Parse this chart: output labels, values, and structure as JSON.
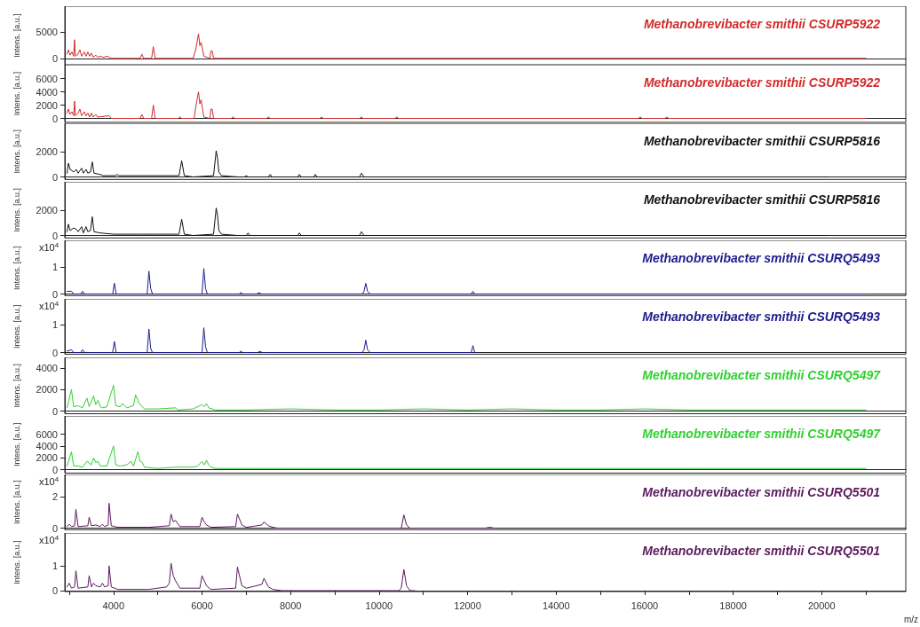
{
  "chart_data": [
    {
      "type": "line",
      "ylabel": "Intens. [a.u.]",
      "xlim": [
        2900,
        21900
      ],
      "ylim": [
        -1200,
        9800
      ],
      "yticks": [
        0,
        5000
      ],
      "tick_labels": "y",
      "legend": "top right",
      "series": [
        {
          "name": "Methanobrevibacter smithii CSURP5922",
          "color": "#d42a2a",
          "x": [
            2950,
            2980,
            3020,
            3060,
            3100,
            3120,
            3140,
            3200,
            3240,
            3280,
            3340,
            3380,
            3420,
            3460,
            3500,
            3540,
            3600,
            3640,
            3700,
            3760,
            3880,
            3920,
            4600,
            4640,
            4680,
            4860,
            4900,
            4940,
            5800,
            5860,
            5920,
            5950,
            5980,
            6040,
            6180,
            6200,
            6230,
            6260,
            21000
          ],
          "values": [
            800,
            1600,
            600,
            1200,
            400,
            3500,
            400,
            800,
            1600,
            400,
            1200,
            400,
            1200,
            400,
            1000,
            200,
            600,
            200,
            400,
            200,
            400,
            0,
            0,
            800,
            0,
            0,
            2200,
            0,
            0,
            1800,
            4600,
            2400,
            3000,
            400,
            0,
            1400,
            1400,
            0,
            0
          ]
        }
      ]
    },
    {
      "type": "line",
      "ylabel": "Intens. [a.u.]",
      "xlim": [
        2900,
        21900
      ],
      "ylim": [
        -600,
        8100
      ],
      "yticks": [
        0,
        2000,
        4000,
        6000
      ],
      "tick_labels": "y",
      "legend": "top right",
      "series": [
        {
          "name": "Methanobrevibacter smithii CSURP5922",
          "color": "#d42a2a",
          "x": [
            2950,
            2980,
            3020,
            3060,
            3100,
            3120,
            3140,
            3200,
            3240,
            3280,
            3340,
            3380,
            3420,
            3460,
            3500,
            3540,
            3600,
            3640,
            3900,
            3950,
            4600,
            4640,
            4680,
            4860,
            4900,
            4940,
            5460,
            5500,
            5540,
            5820,
            5860,
            5920,
            5950,
            5980,
            6040,
            6180,
            6200,
            6230,
            6260,
            6660,
            6700,
            6740,
            7460,
            7500,
            7540,
            8660,
            8700,
            8740,
            9560,
            9600,
            9640,
            10360,
            10400,
            10440,
            15860,
            15900,
            15940,
            16460,
            16500,
            16540,
            21000
          ],
          "values": [
            800,
            1400,
            600,
            1000,
            400,
            2600,
            400,
            800,
            1400,
            400,
            1000,
            400,
            800,
            200,
            800,
            200,
            600,
            200,
            400,
            0,
            0,
            600,
            0,
            0,
            2000,
            0,
            0,
            200,
            0,
            0,
            1800,
            4000,
            2200,
            2800,
            200,
            0,
            1400,
            1400,
            0,
            0,
            200,
            0,
            0,
            200,
            0,
            0,
            200,
            0,
            0,
            200,
            0,
            0,
            200,
            0,
            0,
            200,
            0,
            0,
            200,
            0,
            0
          ]
        }
      ]
    },
    {
      "type": "line",
      "ylabel": "Intens. [a.u.]",
      "xlim": [
        2900,
        21900
      ],
      "ylim": [
        -200,
        4300
      ],
      "yticks": [
        0,
        2000
      ],
      "tick_labels": "y",
      "legend": "top right",
      "series": [
        {
          "name": "Methanobrevibacter smithii CSURP5816",
          "color": "#111111",
          "x": [
            2950,
            2980,
            3020,
            3100,
            3160,
            3200,
            3280,
            3320,
            3380,
            3420,
            3480,
            3520,
            3560,
            3700,
            3760,
            4040,
            4080,
            4120,
            5000,
            5480,
            5540,
            5600,
            5800,
            6260,
            6320,
            6350,
            6380,
            6440,
            6800,
            6960,
            7000,
            7040,
            7500,
            7540,
            7580,
            8160,
            8200,
            8240,
            8520,
            8560,
            8600,
            9560,
            9600,
            9660,
            20100
          ],
          "values": [
            300,
            1100,
            600,
            400,
            600,
            300,
            700,
            300,
            600,
            300,
            400,
            1200,
            300,
            200,
            100,
            100,
            200,
            100,
            100,
            100,
            1300,
            100,
            0,
            100,
            2100,
            1500,
            400,
            100,
            0,
            0,
            100,
            0,
            0,
            200,
            0,
            0,
            200,
            0,
            0,
            200,
            0,
            0,
            300,
            0,
            0
          ]
        }
      ]
    },
    {
      "type": "line",
      "ylabel": "Intens. [a.u.]",
      "xlim": [
        2900,
        21900
      ],
      "ylim": [
        -200,
        4300
      ],
      "yticks": [
        0,
        2000
      ],
      "tick_labels": "y",
      "legend": "top right",
      "series": [
        {
          "name": "Methanobrevibacter smithii CSURP5816",
          "color": "#111111",
          "x": [
            2950,
            2980,
            3020,
            3100,
            3160,
            3200,
            3280,
            3320,
            3380,
            3420,
            3480,
            3520,
            3560,
            3700,
            4000,
            4600,
            5000,
            5480,
            5540,
            5600,
            5800,
            6260,
            6320,
            6350,
            6380,
            6440,
            6800,
            7000,
            7040,
            7080,
            8160,
            8200,
            8240,
            9560,
            9600,
            9660,
            20100
          ],
          "values": [
            300,
            900,
            400,
            600,
            500,
            300,
            700,
            200,
            700,
            300,
            400,
            1500,
            300,
            200,
            100,
            100,
            100,
            100,
            1300,
            100,
            0,
            100,
            2200,
            1600,
            400,
            100,
            0,
            0,
            200,
            0,
            0,
            200,
            0,
            0,
            300,
            0,
            0
          ]
        }
      ]
    },
    {
      "type": "line",
      "ylabel": "Intens. [a.u.]",
      "annotations": [
        "x10$^{4}$"
      ],
      "xlim": [
        2900,
        21900
      ],
      "ylim": [
        -0.06,
        2.0
      ],
      "yticks": [
        0,
        1
      ],
      "tick_labels": "y",
      "legend": "top right",
      "series": [
        {
          "name": "Methanobrevibacter smithii CSURQ5493",
          "color": "#1c1c8c",
          "x": [
            2950,
            3050,
            3100,
            3260,
            3300,
            3350,
            3980,
            4020,
            4060,
            4760,
            4800,
            4840,
            4880,
            6000,
            6040,
            6080,
            6120,
            6840,
            6880,
            6920,
            7240,
            7280,
            7340,
            9620,
            9660,
            9700,
            9740,
            9800,
            12080,
            12120,
            12160,
            21000
          ],
          "values": [
            0.1,
            0.1,
            0,
            0,
            0.1,
            0,
            0,
            0.4,
            0,
            0,
            0.85,
            0.2,
            0,
            0,
            0.95,
            0.2,
            0,
            0,
            0.05,
            0,
            0,
            0.05,
            0,
            0,
            0.1,
            0.4,
            0.1,
            0,
            0,
            0.1,
            0,
            0
          ]
        }
      ]
    },
    {
      "type": "line",
      "ylabel": "Intens. [a.u.]",
      "annotations": [
        "x10$^{4}$"
      ],
      "xlim": [
        2900,
        21900
      ],
      "ylim": [
        -0.06,
        1.95
      ],
      "yticks": [
        0,
        1
      ],
      "tick_labels": "y",
      "legend": "top right",
      "series": [
        {
          "name": "Methanobrevibacter smithii CSURQ5493",
          "color": "#1c1c8c",
          "x": [
            2950,
            3050,
            3100,
            3260,
            3300,
            3350,
            3980,
            4020,
            4060,
            4760,
            4800,
            4840,
            4880,
            6000,
            6040,
            6080,
            6120,
            6840,
            6880,
            6920,
            7260,
            7300,
            7360,
            9620,
            9660,
            9700,
            9740,
            9800,
            12080,
            12120,
            12160,
            12200
          ],
          "values": [
            0.05,
            0.1,
            0,
            0,
            0.1,
            0,
            0,
            0.4,
            0,
            0,
            0.85,
            0.15,
            0,
            0,
            0.9,
            0.2,
            0,
            0,
            0.05,
            0,
            0,
            0.05,
            0,
            0,
            0.1,
            0.45,
            0.1,
            0,
            0,
            0.25,
            0,
            0
          ]
        }
      ]
    },
    {
      "type": "line",
      "ylabel": "Intens. [a.u.]",
      "xlim": [
        2900,
        21900
      ],
      "ylim": [
        -250,
        5000
      ],
      "yticks": [
        0,
        2000,
        4000
      ],
      "tick_labels": "y",
      "legend": "top right",
      "series": [
        {
          "name": "Methanobrevibacter smithii CSURQ5497",
          "color": "#2fd12f",
          "x": [
            2950,
            3050,
            3100,
            3200,
            3300,
            3400,
            3450,
            3550,
            3600,
            3650,
            3700,
            3750,
            3850,
            4000,
            4050,
            4150,
            4200,
            4300,
            4450,
            4500,
            4550,
            4600,
            4700,
            5000,
            5400,
            5450,
            5800,
            6000,
            6050,
            6100,
            6150,
            6300,
            7000,
            8000,
            9000,
            10000,
            11000,
            12000,
            13000,
            14000,
            15000,
            16000,
            17000,
            18000,
            19000,
            20000,
            21000
          ],
          "values": [
            300,
            2000,
            400,
            500,
            300,
            1200,
            400,
            1400,
            600,
            1000,
            400,
            300,
            400,
            2400,
            500,
            400,
            700,
            300,
            500,
            1500,
            1000,
            600,
            200,
            200,
            300,
            100,
            200,
            600,
            400,
            700,
            300,
            100,
            100,
            200,
            100,
            100,
            200,
            100,
            200,
            100,
            100,
            200,
            100,
            100,
            100,
            100,
            100
          ]
        }
      ]
    },
    {
      "type": "line",
      "ylabel": "Intens. [a.u.]",
      "xlim": [
        2900,
        21900
      ],
      "ylim": [
        -600,
        9100
      ],
      "yticks": [
        0,
        2000,
        4000,
        6000
      ],
      "tick_labels": "y",
      "legend": "top right",
      "series": [
        {
          "name": "Methanobrevibacter smithii CSURQ5497",
          "color": "#2fd12f",
          "x": [
            2950,
            3050,
            3100,
            3200,
            3300,
            3400,
            3500,
            3550,
            3600,
            3650,
            3700,
            3750,
            3850,
            4000,
            4050,
            4150,
            4300,
            4400,
            4450,
            4550,
            4600,
            4650,
            4700,
            5000,
            5400,
            5800,
            5900,
            6000,
            6050,
            6100,
            6150,
            6200,
            6300,
            7000,
            8000,
            9000,
            10000,
            11000,
            12000,
            13000,
            14000,
            15000,
            16000,
            17000,
            18000,
            19000,
            20000,
            21000
          ],
          "values": [
            600,
            3000,
            600,
            600,
            400,
            1400,
            800,
            2000,
            1200,
            1400,
            600,
            600,
            600,
            4000,
            800,
            600,
            800,
            1400,
            600,
            3000,
            1400,
            1200,
            400,
            200,
            400,
            400,
            600,
            1400,
            800,
            1600,
            800,
            400,
            200,
            200,
            200,
            200,
            200,
            200,
            200,
            200,
            200,
            200,
            200,
            200,
            200,
            200,
            200,
            200
          ]
        }
      ]
    },
    {
      "type": "line",
      "ylabel": "Intens. [a.u.]",
      "annotations": [
        "x10$^{4}$"
      ],
      "xlim": [
        2900,
        21900
      ],
      "ylim": [
        -0.1,
        3.45
      ],
      "yticks": [
        0,
        2
      ],
      "tick_labels": "y",
      "legend": "top right",
      "series": [
        {
          "name": "Methanobrevibacter smithii CSURQ5501",
          "color": "#5a1a5c",
          "x": [
            2950,
            3000,
            3050,
            3120,
            3150,
            3200,
            3420,
            3450,
            3500,
            3600,
            3700,
            3750,
            3800,
            3880,
            3900,
            3950,
            4100,
            4800,
            5260,
            5300,
            5350,
            5400,
            5500,
            5950,
            6000,
            6050,
            6100,
            6200,
            6760,
            6800,
            6860,
            6900,
            7000,
            7350,
            7400,
            7500,
            7600,
            7700,
            10500,
            10560,
            10620,
            10700,
            11900,
            12400,
            12500,
            12600
          ],
          "values": [
            0.1,
            0.25,
            0.1,
            0.15,
            1.2,
            0.1,
            0.15,
            0.7,
            0.15,
            0.2,
            0.1,
            0.25,
            0.1,
            0.2,
            1.6,
            0.15,
            0.05,
            0.05,
            0.15,
            0.9,
            0.4,
            0.5,
            0.1,
            0.1,
            0.7,
            0.4,
            0.2,
            0.05,
            0.1,
            0.9,
            0.5,
            0.2,
            0.05,
            0.2,
            0.4,
            0.15,
            0.05,
            0,
            0,
            0.85,
            0.2,
            0,
            0,
            0,
            0.05,
            0
          ]
        }
      ]
    },
    {
      "type": "line",
      "ylabel": "Intens. [a.u.]",
      "xlabel": "m/z",
      "annotations": [
        "x10$^{4}$"
      ],
      "xlim": [
        2900,
        21900
      ],
      "ylim": [
        -0.035,
        2.32
      ],
      "yticks": [
        0,
        1
      ],
      "xticks": [
        {
          "value": 3000,
          "label": null
        },
        4000,
        {
          "value": 5000,
          "label": null
        },
        6000,
        {
          "value": 7000,
          "label": null
        },
        8000,
        {
          "value": 9000,
          "label": null
        },
        10000,
        {
          "value": 11000,
          "label": null
        },
        12000,
        {
          "value": 13000,
          "label": null
        },
        14000,
        {
          "value": 15000,
          "label": null
        },
        16000,
        {
          "value": 17000,
          "label": null
        },
        18000,
        {
          "value": 19000,
          "label": null
        },
        20000,
        {
          "value": 21000,
          "label": null
        }
      ],
      "legend": "top right",
      "series": [
        {
          "name": "Methanobrevibacter smithii CSURQ5501",
          "color": "#5a1a5c",
          "x": [
            2950,
            3000,
            3050,
            3120,
            3150,
            3200,
            3420,
            3450,
            3500,
            3550,
            3600,
            3700,
            3750,
            3800,
            3880,
            3900,
            3950,
            4100,
            4800,
            5200,
            5260,
            5300,
            5350,
            5400,
            5500,
            5950,
            6000,
            6050,
            6100,
            6200,
            6760,
            6800,
            6860,
            6900,
            7000,
            7350,
            7400,
            7500,
            7600,
            7800,
            10450,
            10500,
            10560,
            10620,
            10700,
            10800
          ],
          "values": [
            0.15,
            0.3,
            0.1,
            0.15,
            0.8,
            0.1,
            0.15,
            0.6,
            0.15,
            0.3,
            0.2,
            0.15,
            0.3,
            0.15,
            0.2,
            1.0,
            0.15,
            0.05,
            0.05,
            0.15,
            0.3,
            1.1,
            0.6,
            0.4,
            0.1,
            0.1,
            0.6,
            0.4,
            0.2,
            0.05,
            0.1,
            0.95,
            0.5,
            0.2,
            0.1,
            0.25,
            0.5,
            0.15,
            0.05,
            0,
            0,
            0.1,
            0.85,
            0.2,
            0,
            0
          ]
        }
      ]
    }
  ]
}
